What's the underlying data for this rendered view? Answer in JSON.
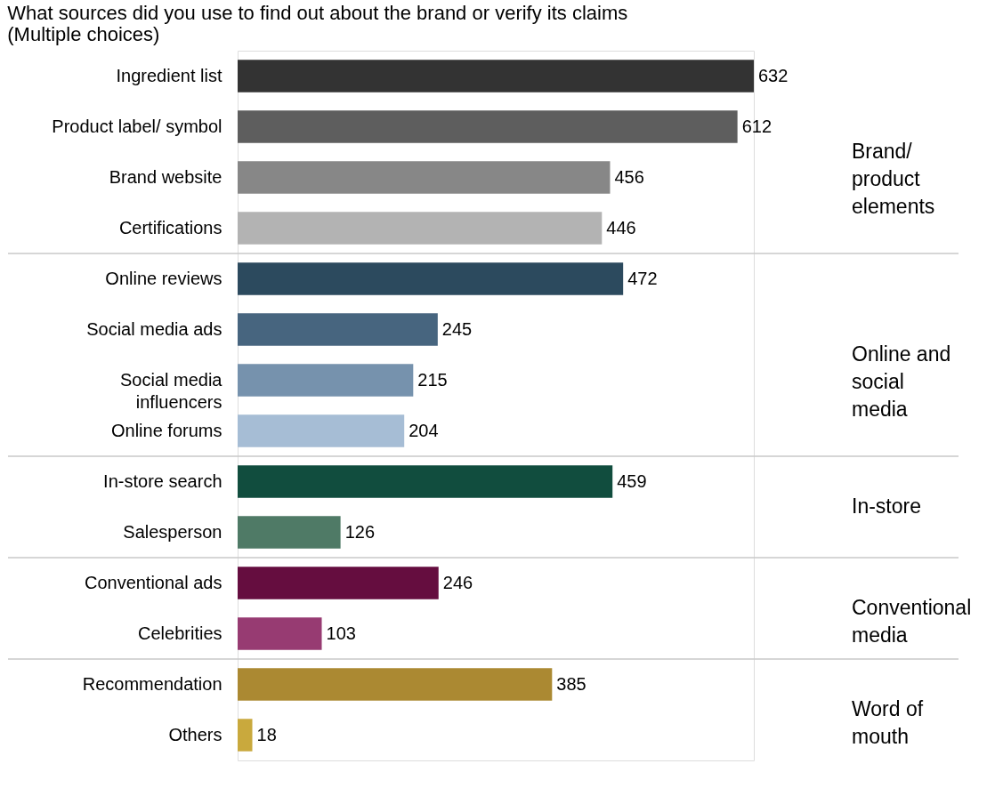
{
  "chart_data": {
    "type": "bar",
    "orientation": "horizontal",
    "title": "What sources did you use to find out about the brand or verify its claims\n(Multiple choices)",
    "categories": [
      "Ingredient list",
      "Product label/ symbol",
      "Brand website",
      "Certifications",
      "Online reviews",
      "Social media ads",
      "Social media\ninfluencers",
      "Online forums",
      "In-store search",
      "Salesperson",
      "Conventional ads",
      "Celebrities",
      "Recommendation",
      "Others"
    ],
    "values": [
      632,
      612,
      456,
      446,
      472,
      245,
      215,
      204,
      459,
      126,
      246,
      103,
      385,
      18
    ],
    "colors": [
      "#333333",
      "#5e5e5e",
      "#878787",
      "#b3b3b3",
      "#2c4a5e",
      "#47657f",
      "#7692ad",
      "#a6bdd5",
      "#114d3e",
      "#4f7a66",
      "#650d3f",
      "#973b72",
      "#ab8932",
      "#c9a93d"
    ],
    "data_labels": true,
    "annotations": [
      "Brand/\nproduct\nelements",
      "Online and\nsocial\nmedia",
      "In-store",
      "Conventional\nmedia",
      "Word of\nmouth"
    ]
  }
}
